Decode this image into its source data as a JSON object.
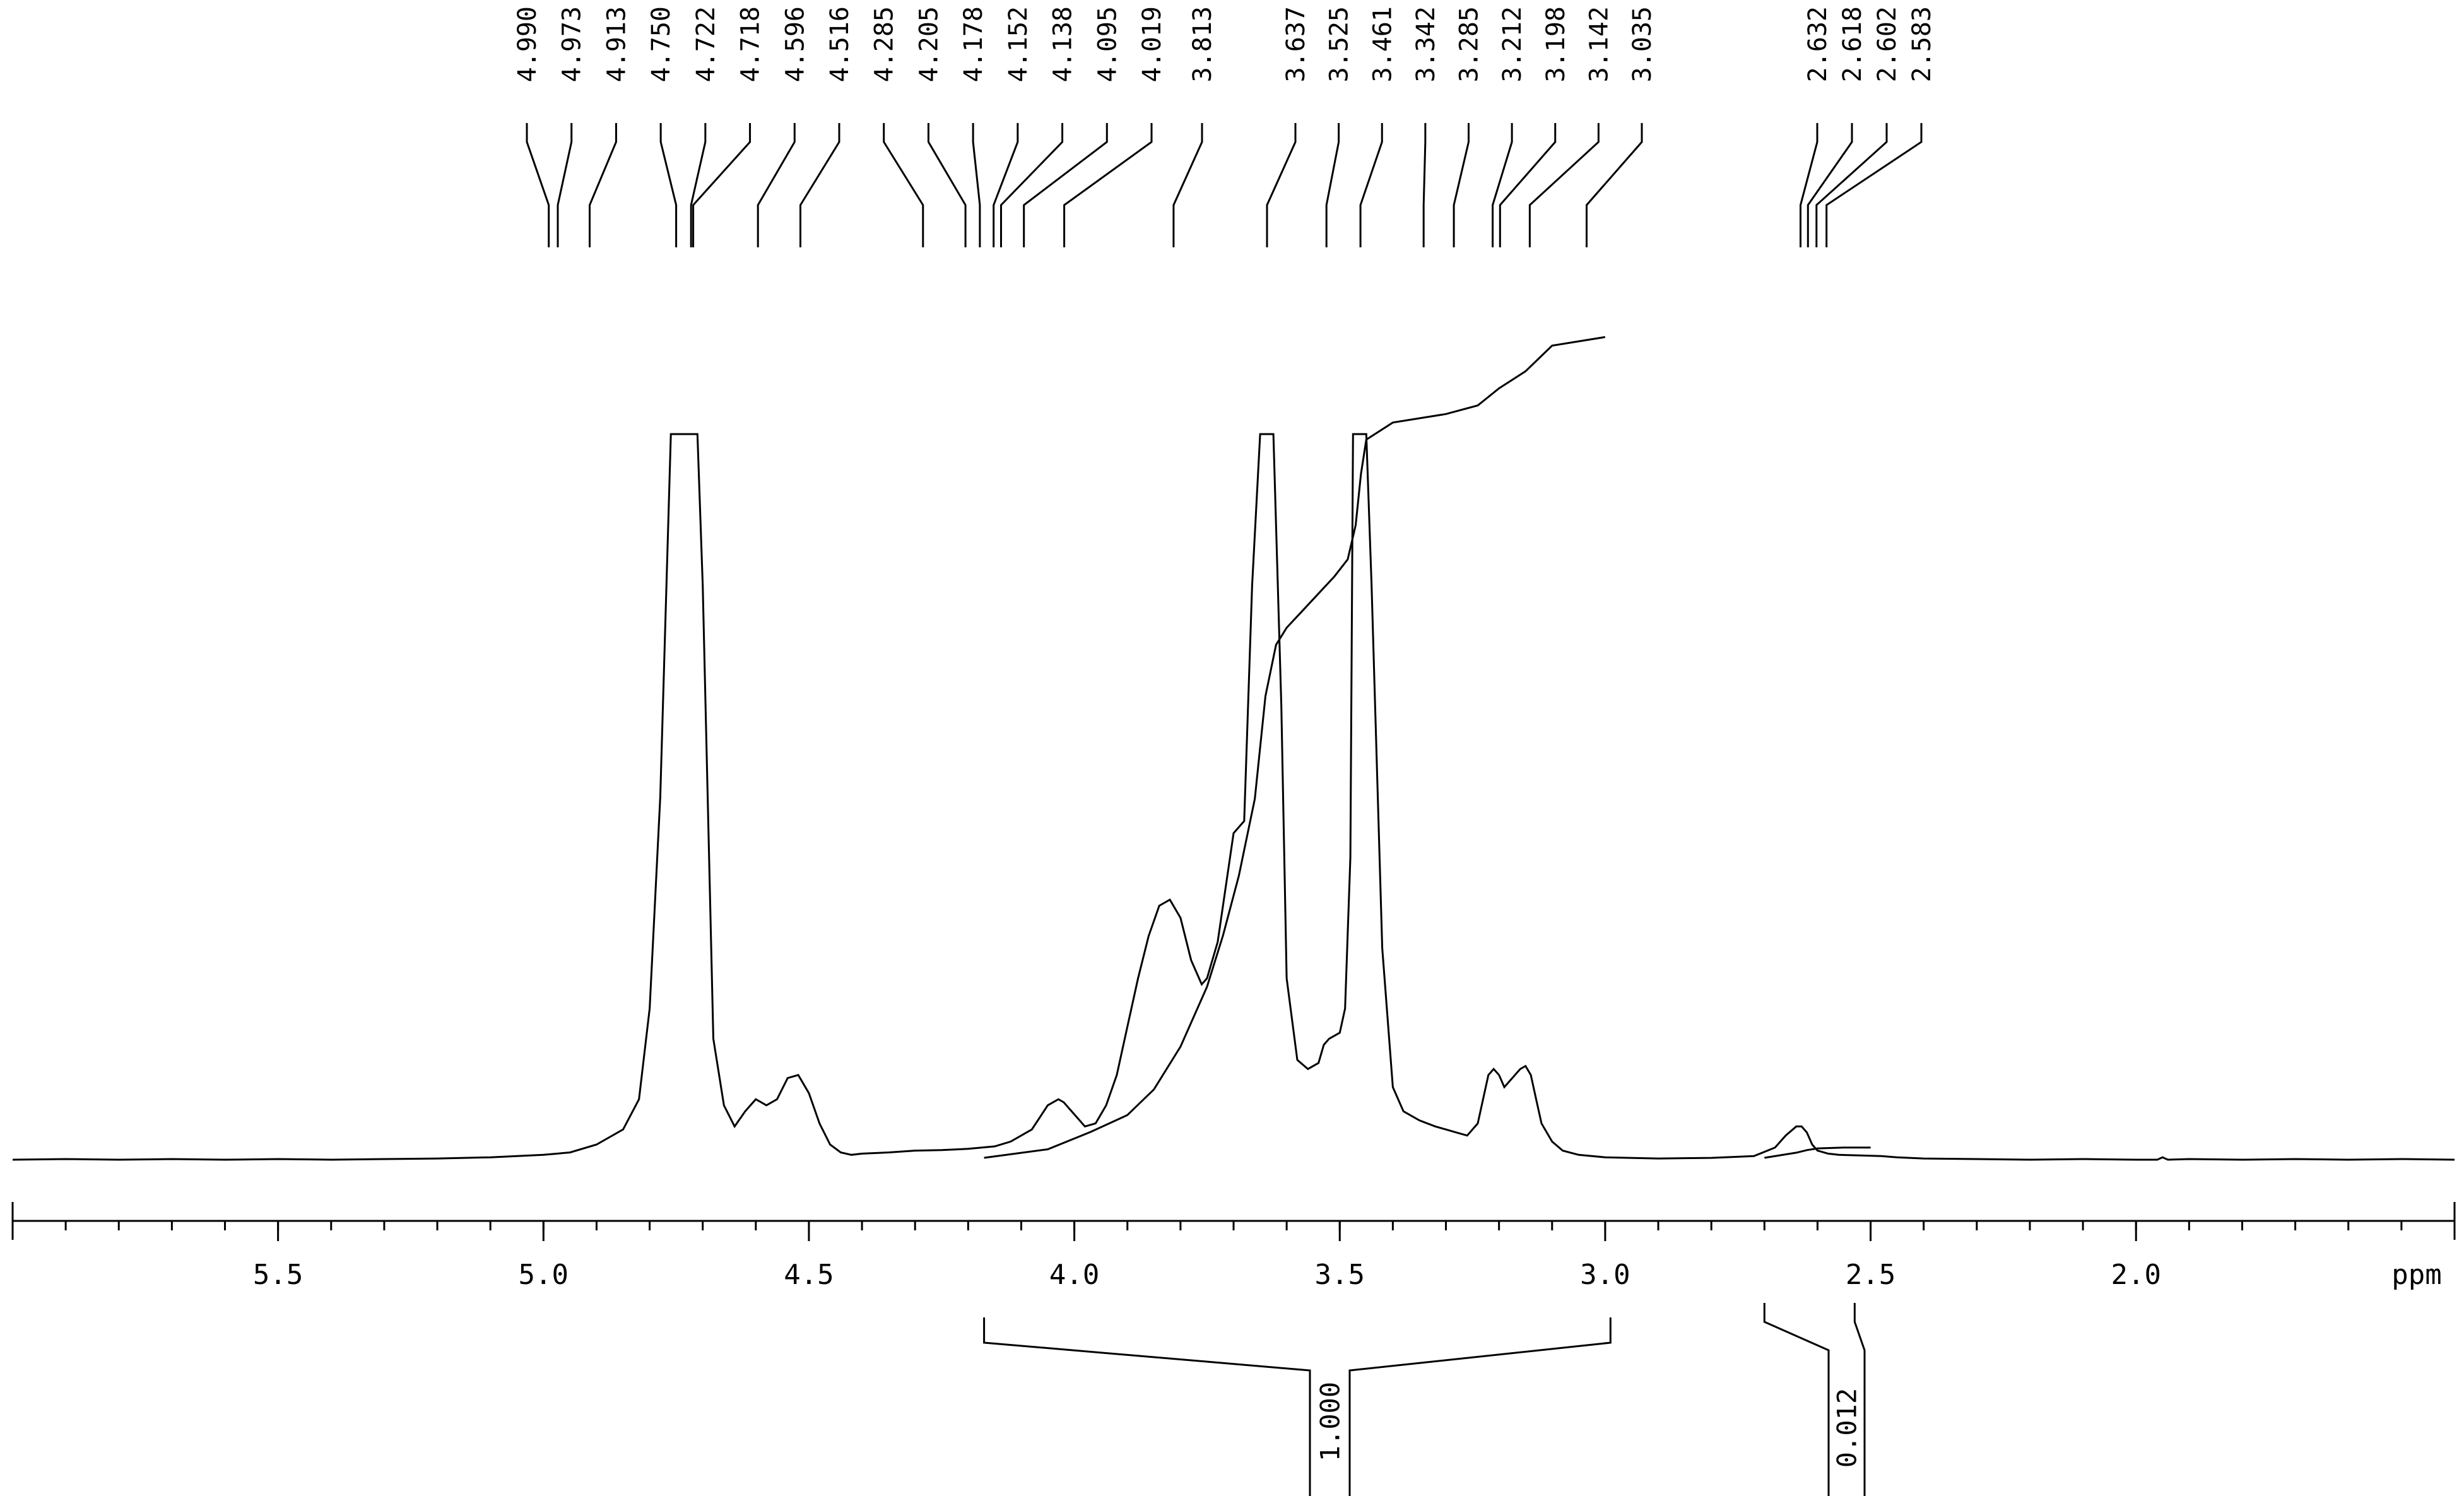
{
  "chart_data": {
    "type": "line",
    "title": "",
    "xlabel": "ppm",
    "ylabel": "",
    "xlim": [
      6.0,
      1.4
    ],
    "x_reversed": true,
    "grid": false,
    "x_ticks": [
      5.5,
      5.0,
      4.5,
      4.0,
      3.5,
      3.0,
      2.5,
      2.0
    ],
    "x_tick_labels": [
      "5.5",
      "5.0",
      "4.5",
      "4.0",
      "3.5",
      "3.0",
      "2.5",
      "2.0"
    ],
    "peak_labels": [
      {
        "ppm": 4.99,
        "text": "4.990"
      },
      {
        "ppm": 4.973,
        "text": "4.973"
      },
      {
        "ppm": 4.913,
        "text": "4.913"
      },
      {
        "ppm": 4.75,
        "text": "4.750"
      },
      {
        "ppm": 4.722,
        "text": "4.722"
      },
      {
        "ppm": 4.718,
        "text": "4.718"
      },
      {
        "ppm": 4.596,
        "text": "4.596"
      },
      {
        "ppm": 4.516,
        "text": "4.516"
      },
      {
        "ppm": 4.285,
        "text": "4.285"
      },
      {
        "ppm": 4.205,
        "text": "4.205"
      },
      {
        "ppm": 4.178,
        "text": "4.178"
      },
      {
        "ppm": 4.152,
        "text": "4.152"
      },
      {
        "ppm": 4.138,
        "text": "4.138"
      },
      {
        "ppm": 4.095,
        "text": "4.095"
      },
      {
        "ppm": 4.019,
        "text": "4.019"
      },
      {
        "ppm": 3.813,
        "text": "3.813"
      },
      {
        "ppm": 3.637,
        "text": "3.637"
      },
      {
        "ppm": 3.525,
        "text": "3.525"
      },
      {
        "ppm": 3.461,
        "text": "3.461"
      },
      {
        "ppm": 3.342,
        "text": "3.342"
      },
      {
        "ppm": 3.285,
        "text": "3.285"
      },
      {
        "ppm": 3.212,
        "text": "3.212"
      },
      {
        "ppm": 3.198,
        "text": "3.198"
      },
      {
        "ppm": 3.142,
        "text": "3.142"
      },
      {
        "ppm": 3.035,
        "text": "3.035"
      },
      {
        "ppm": 2.632,
        "text": "2.632"
      },
      {
        "ppm": 2.618,
        "text": "2.618"
      },
      {
        "ppm": 2.602,
        "text": "2.602"
      },
      {
        "ppm": 2.583,
        "text": "2.583"
      }
    ],
    "integrals": [
      {
        "from": 4.17,
        "to": 2.99,
        "value": "1.000"
      },
      {
        "from": 2.7,
        "to": 2.53,
        "value": "0.012"
      }
    ],
    "spectrum": {
      "x": [
        6.0,
        5.9,
        5.8,
        5.7,
        5.6,
        5.5,
        5.4,
        5.3,
        5.2,
        5.1,
        5.0,
        4.95,
        4.9,
        4.85,
        4.82,
        4.8,
        4.78,
        4.765,
        4.76,
        4.755,
        4.75,
        4.73,
        4.72,
        4.715,
        4.71,
        4.7,
        4.68,
        4.66,
        4.64,
        4.62,
        4.6,
        4.58,
        4.56,
        4.54,
        4.52,
        4.5,
        4.48,
        4.46,
        4.44,
        4.42,
        4.4,
        4.35,
        4.3,
        4.25,
        4.2,
        4.15,
        4.12,
        4.08,
        4.05,
        4.03,
        4.02,
        4.0,
        3.98,
        3.96,
        3.94,
        3.92,
        3.9,
        3.88,
        3.86,
        3.84,
        3.82,
        3.8,
        3.78,
        3.76,
        3.75,
        3.73,
        3.7,
        3.68,
        3.665,
        3.65,
        3.64,
        3.635,
        3.625,
        3.61,
        3.6,
        3.58,
        3.56,
        3.54,
        3.53,
        3.52,
        3.5,
        3.49,
        3.48,
        3.475,
        3.465,
        3.46,
        3.455,
        3.45,
        3.44,
        3.42,
        3.4,
        3.38,
        3.35,
        3.32,
        3.3,
        3.28,
        3.26,
        3.24,
        3.22,
        3.21,
        3.2,
        3.19,
        3.18,
        3.16,
        3.15,
        3.14,
        3.13,
        3.12,
        3.1,
        3.08,
        3.05,
        3.0,
        2.9,
        2.8,
        2.72,
        2.68,
        2.66,
        2.64,
        2.63,
        2.62,
        2.61,
        2.6,
        2.58,
        2.56,
        2.52,
        2.48,
        2.45,
        2.4,
        2.3,
        2.2,
        2.1,
        2.0,
        1.96,
        1.95,
        1.94,
        1.9,
        1.8,
        1.7,
        1.6,
        1.5,
        1.4
      ],
      "y": [
        0.0,
        0.001,
        0.0,
        0.001,
        0.0,
        0.001,
        0.0,
        0.001,
        0.002,
        0.004,
        0.008,
        0.012,
        0.025,
        0.05,
        0.1,
        0.25,
        0.6,
        1.05,
        1.2,
        1.2,
        1.2,
        1.2,
        1.2,
        1.2,
        1.2,
        0.95,
        0.2,
        0.09,
        0.055,
        0.08,
        0.1,
        0.09,
        0.1,
        0.135,
        0.14,
        0.11,
        0.06,
        0.025,
        0.012,
        0.008,
        0.01,
        0.012,
        0.015,
        0.016,
        0.018,
        0.022,
        0.03,
        0.05,
        0.09,
        0.1,
        0.095,
        0.075,
        0.055,
        0.06,
        0.09,
        0.14,
        0.22,
        0.3,
        0.37,
        0.42,
        0.43,
        0.4,
        0.33,
        0.29,
        0.3,
        0.36,
        0.54,
        0.56,
        0.95,
        1.2,
        1.2,
        1.2,
        1.2,
        0.75,
        0.3,
        0.165,
        0.15,
        0.16,
        0.19,
        0.2,
        0.21,
        0.25,
        0.5,
        1.2,
        1.2,
        1.2,
        1.2,
        1.2,
        0.95,
        0.35,
        0.12,
        0.08,
        0.065,
        0.055,
        0.05,
        0.045,
        0.04,
        0.06,
        0.14,
        0.15,
        0.14,
        0.12,
        0.13,
        0.15,
        0.155,
        0.14,
        0.1,
        0.06,
        0.03,
        0.015,
        0.008,
        0.004,
        0.002,
        0.003,
        0.006,
        0.02,
        0.04,
        0.055,
        0.055,
        0.045,
        0.025,
        0.015,
        0.01,
        0.008,
        0.007,
        0.006,
        0.004,
        0.002,
        0.001,
        0.0,
        0.001,
        0.0,
        0.0,
        0.004,
        0.0,
        0.001,
        0.0,
        0.001,
        0.0,
        0.001,
        0.0
      ]
    },
    "integral_curve": {
      "x": [
        4.17,
        4.05,
        3.97,
        3.9,
        3.85,
        3.8,
        3.75,
        3.72,
        3.69,
        3.66,
        3.64,
        3.62,
        3.6,
        3.57,
        3.54,
        3.51,
        3.485,
        3.47,
        3.46,
        3.45,
        3.4,
        3.3,
        3.24,
        3.2,
        3.15,
        3.1,
        3.05,
        3.0
      ],
      "y": [
        0.0,
        0.01,
        0.03,
        0.05,
        0.08,
        0.13,
        0.2,
        0.26,
        0.33,
        0.42,
        0.54,
        0.6,
        0.62,
        0.64,
        0.66,
        0.68,
        0.7,
        0.74,
        0.8,
        0.84,
        0.86,
        0.87,
        0.88,
        0.9,
        0.92,
        0.95,
        0.955,
        0.96
      ]
    },
    "small_integral_curve": {
      "x": [
        2.7,
        2.64,
        2.62,
        2.6,
        2.55,
        2.5
      ],
      "y": [
        0.0,
        0.006,
        0.009,
        0.011,
        0.012,
        0.012
      ]
    }
  }
}
